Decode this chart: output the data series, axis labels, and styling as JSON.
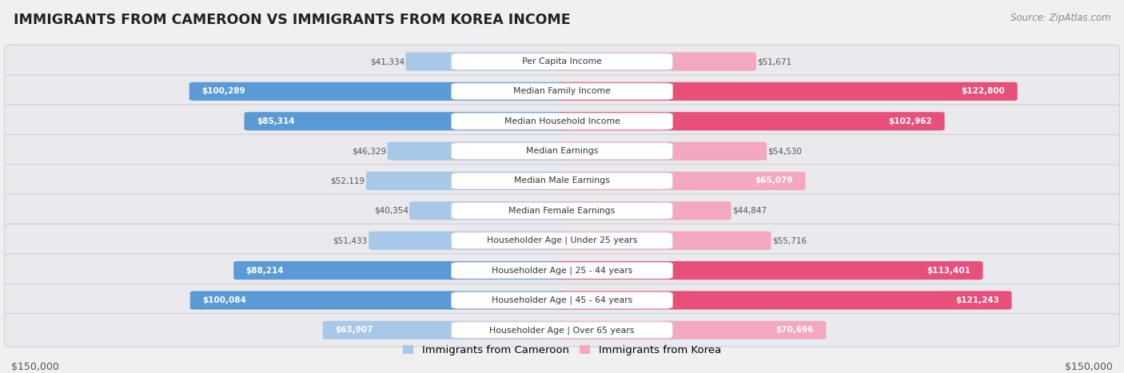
{
  "title": "IMMIGRANTS FROM CAMEROON VS IMMIGRANTS FROM KOREA INCOME",
  "source": "Source: ZipAtlas.com",
  "categories": [
    "Per Capita Income",
    "Median Family Income",
    "Median Household Income",
    "Median Earnings",
    "Median Male Earnings",
    "Median Female Earnings",
    "Householder Age | Under 25 years",
    "Householder Age | 25 - 44 years",
    "Householder Age | 45 - 64 years",
    "Householder Age | Over 65 years"
  ],
  "cameroon_values": [
    41334,
    100289,
    85314,
    46329,
    52119,
    40354,
    51433,
    88214,
    100084,
    63907
  ],
  "korea_values": [
    51671,
    122800,
    102962,
    54530,
    65079,
    44847,
    55716,
    113401,
    121243,
    70696
  ],
  "max_val": 150000,
  "cameroon_color_light": "#a8c8e8",
  "cameroon_color_dark": "#5b9bd5",
  "korea_color_light": "#f4a8bf",
  "korea_color_dark": "#e8507a",
  "bg_color": "#f0f0f0",
  "row_bg": "#e8e8ec",
  "row_border": "#d0d0d8",
  "label_bg": "#ffffff",
  "title_color": "#222222",
  "value_color_outside": "#555555",
  "value_color_inside": "#ffffff",
  "legend_label_cameroon": "Immigrants from Cameroon",
  "legend_label_korea": "Immigrants from Korea",
  "axis_label_left": "$150,000",
  "axis_label_right": "$150,000",
  "inside_threshold_cam": 60000,
  "inside_threshold_kor": 60000
}
